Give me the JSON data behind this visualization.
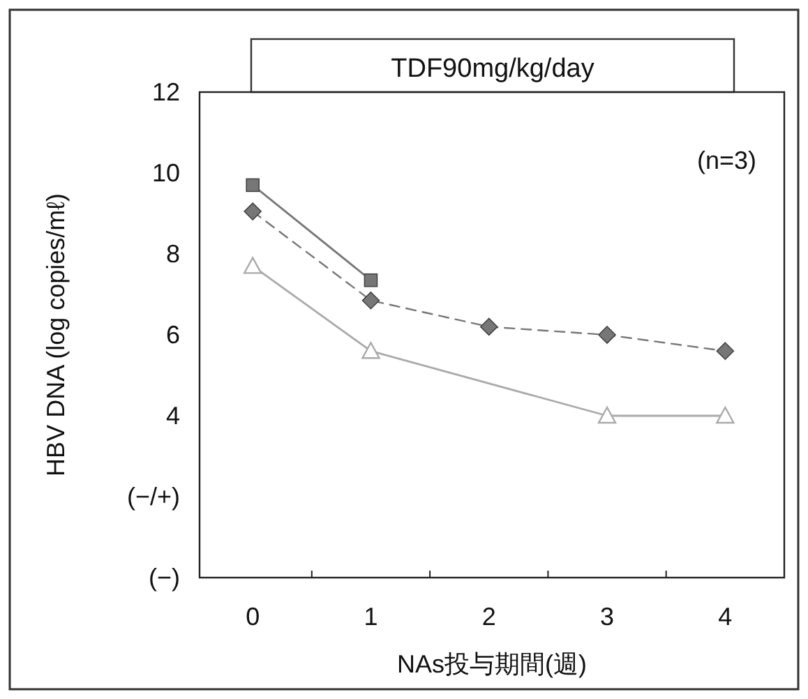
{
  "chart_data": {
    "type": "line",
    "title": "TDF90mg/kg/day",
    "xlabel": "NAs投与期間(週)",
    "ylabel": "HBV DNA (log copies/mℓ)",
    "annotations": [
      "(n=3)"
    ],
    "xlim": [
      -0.45,
      4.5
    ],
    "xticks": [
      0,
      1,
      2,
      3,
      4,
      {
        "value": 0.5,
        "label": null
      },
      {
        "value": 1.5,
        "label": null
      },
      {
        "value": 2.5,
        "label": null
      },
      {
        "value": 3.5,
        "label": null
      }
    ],
    "ylim": [
      0,
      12
    ],
    "yticks": [
      {
        "value": 0,
        "label": "(−)"
      },
      {
        "value": 2,
        "label": "(−/+)"
      },
      4,
      6,
      8,
      10,
      12
    ],
    "grid": false,
    "series": [
      {
        "color": "#777777",
        "marker": "square",
        "line_style": "solid",
        "x": [
          0,
          1
        ],
        "values": [
          9.7,
          7.35
        ]
      },
      {
        "color": "#777777",
        "marker": "diamond",
        "line_style": "dashed",
        "x": [
          0,
          1,
          2,
          3,
          4
        ],
        "values": [
          9.05,
          6.85,
          6.2,
          6.0,
          5.6
        ]
      },
      {
        "color": "#aaaaaa",
        "marker": "triangle",
        "line_style": "solid",
        "x": [
          0,
          1,
          3,
          4
        ],
        "values": [
          7.7,
          5.6,
          4.0,
          4.0
        ]
      }
    ]
  }
}
